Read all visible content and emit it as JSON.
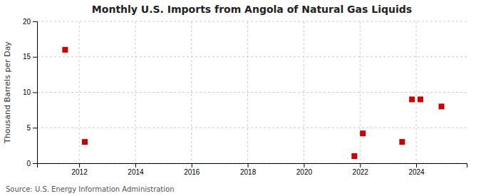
{
  "chart_data": {
    "type": "scatter",
    "title": "Monthly U.S. Imports from Angola of Natural Gas Liquids",
    "ylabel": "Thousand Barrels per Day",
    "annotations": [
      "Source: U.S. Energy Information Administration"
    ],
    "x": [
      2011.5,
      2012.2,
      2021.8,
      2022.1,
      2023.5,
      2023.85,
      2024.15,
      2024.9
    ],
    "values": [
      16.0,
      3.0,
      1.0,
      4.2,
      3.0,
      9.0,
      9.0,
      8.0
    ],
    "color": "#cc0000",
    "marker": "square",
    "xlim": [
      2010.5,
      2025.8
    ],
    "ylim": [
      0,
      20
    ],
    "xticks": [
      2012,
      2014,
      2016,
      2018,
      2020,
      2022,
      2024
    ],
    "yticks": [
      0,
      5,
      10,
      15,
      20
    ],
    "grid": true
  }
}
